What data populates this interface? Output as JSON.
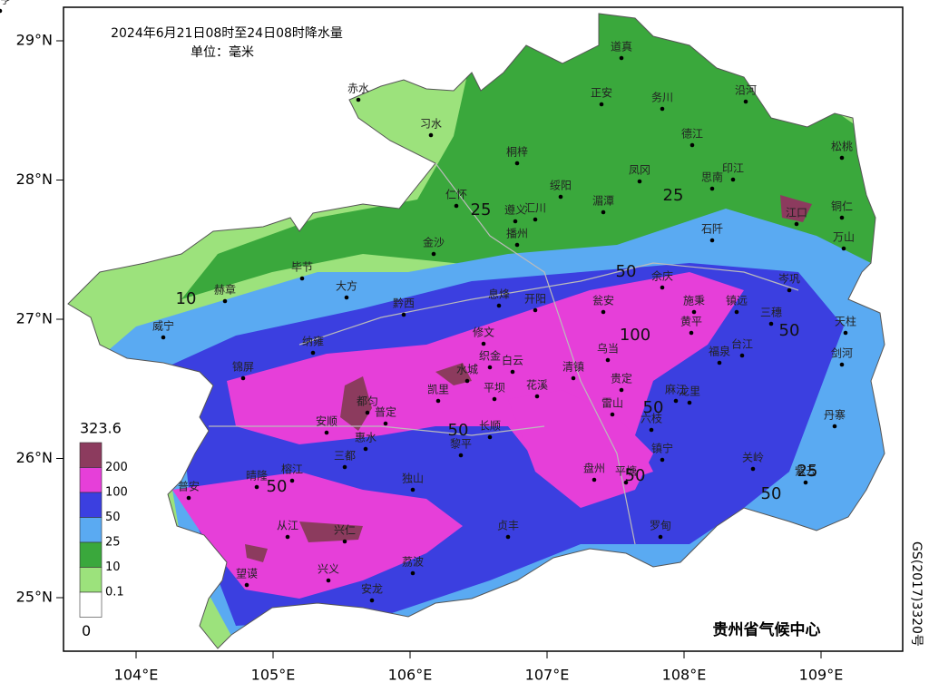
{
  "title": "2024年6月21日08时至24日08时降水量",
  "unit": "单位：毫米",
  "lat_ticks": [
    {
      "value": 29,
      "label": "29°N"
    },
    {
      "value": 28,
      "label": "28°N"
    },
    {
      "value": 27,
      "label": "27°N"
    },
    {
      "value": 26,
      "label": "26°N"
    },
    {
      "value": 25,
      "label": "25°N"
    }
  ],
  "lon_ticks": [
    {
      "value": 104,
      "label": "104°E"
    },
    {
      "value": 105,
      "label": "105°E"
    },
    {
      "value": 106,
      "label": "106°E"
    },
    {
      "value": 107,
      "label": "107°E"
    },
    {
      "value": 108,
      "label": "108°E"
    },
    {
      "value": 109,
      "label": "109°E"
    }
  ],
  "legend": {
    "max": 323.6,
    "min": 0,
    "levels": [
      {
        "value": 200,
        "color": "#8c3b5e"
      },
      {
        "value": 100,
        "color": "#e63fd9"
      },
      {
        "value": 50,
        "color": "#3b3fe0"
      },
      {
        "value": 25,
        "color": "#5aaaf2"
      },
      {
        "value": 10,
        "color": "#3aa83c"
      },
      {
        "value": 0.1,
        "color": "#9ce27c"
      }
    ],
    "lowest_color": "#ffffff"
  },
  "contour_labels": [
    "10",
    "25",
    "25",
    "50",
    "100",
    "50",
    "50",
    "50",
    "50",
    "50",
    "50",
    "25"
  ],
  "cities": [
    "赤水",
    "习水",
    "道真",
    "正安",
    "务川",
    "沿河",
    "桐梓",
    "德江",
    "松桃",
    "绥阳",
    "凤冈",
    "思南",
    "印江",
    "仁怀",
    "遵义",
    "汇川",
    "湄潭",
    "铜仁",
    "江口",
    "石阡",
    "播州",
    "金沙",
    "万山",
    "毕节",
    "赫章",
    "大方",
    "余庆",
    "岑巩",
    "黔西",
    "息烽",
    "开阳",
    "瓮安",
    "施秉",
    "镇远",
    "三穗",
    "天柱",
    "威宁",
    "黄平",
    "纳雍",
    "修文",
    "织金",
    "白云",
    "乌当",
    "福泉",
    "台江",
    "剑河",
    "锦屏",
    "水城",
    "清镇",
    "贵定",
    "麻江",
    "凯里",
    "平坝",
    "花溪",
    "龙里",
    "雷山",
    "都匀",
    "普定",
    "安顺",
    "六枝",
    "丹寨",
    "黎平",
    "长顺",
    "惠水",
    "镇宁",
    "三都",
    "关岭",
    "榕江",
    "晴隆",
    "普安",
    "盘州",
    "平塘",
    "独山",
    "紫云",
    "从江",
    "兴仁",
    "贞丰",
    "罗甸",
    "荔波",
    "望谟",
    "兴义",
    "安龙",
    "册亨"
  ],
  "credit": "贵州省气候中心",
  "approval": "GS(2017)3320号"
}
